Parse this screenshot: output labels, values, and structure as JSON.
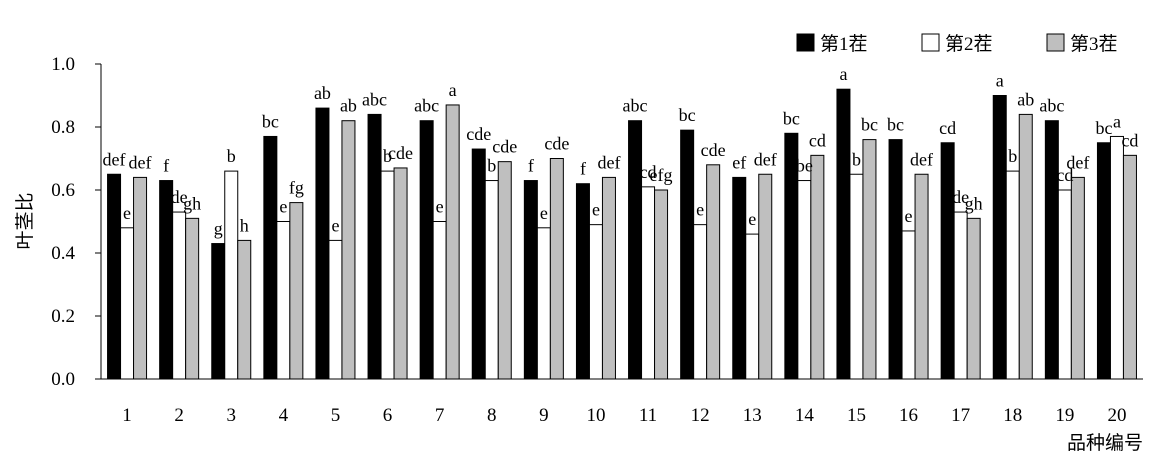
{
  "chart_data": {
    "type": "bar",
    "title": "",
    "xlabel": "品种编号",
    "ylabel": "叶茎比",
    "ylim": [
      0,
      1.0
    ],
    "yticks": [
      "0.0",
      "0.2",
      "0.4",
      "0.6",
      "0.8",
      "1.0"
    ],
    "categories": [
      "1",
      "2",
      "3",
      "4",
      "5",
      "6",
      "7",
      "8",
      "9",
      "10",
      "11",
      "12",
      "13",
      "14",
      "15",
      "16",
      "17",
      "18",
      "19",
      "20"
    ],
    "legend_position": "top-right",
    "grid": false,
    "series": [
      {
        "name": "第1茬",
        "color": "#000000",
        "values": [
          0.65,
          0.63,
          0.43,
          0.77,
          0.86,
          0.84,
          0.82,
          0.73,
          0.63,
          0.62,
          0.82,
          0.79,
          0.64,
          0.78,
          0.92,
          0.76,
          0.75,
          0.9,
          0.82,
          0.75
        ],
        "letters": [
          "def",
          "f",
          "g",
          "bc",
          "ab",
          "abc",
          "abc",
          "cde",
          "f",
          "f",
          "abc",
          "bc",
          "ef",
          "bc",
          "a",
          "bc",
          "cd",
          "a",
          "abc",
          "bc"
        ]
      },
      {
        "name": "第2茬",
        "color": "#ffffff",
        "values": [
          0.48,
          0.53,
          0.66,
          0.5,
          0.44,
          0.66,
          0.5,
          0.63,
          0.48,
          0.49,
          0.61,
          0.49,
          0.46,
          0.63,
          0.65,
          0.47,
          0.53,
          0.66,
          0.6,
          0.77
        ],
        "letters": [
          "e",
          "de",
          "b",
          "e",
          "e",
          "b",
          "e",
          "b",
          "e",
          "e",
          "cd",
          "e",
          "e",
          "be",
          "b",
          "e",
          "de",
          "b",
          "cd",
          "a"
        ]
      },
      {
        "name": "第3茬",
        "color": "#bfbfbf",
        "values": [
          0.64,
          0.51,
          0.44,
          0.56,
          0.82,
          0.67,
          0.87,
          0.69,
          0.7,
          0.64,
          0.6,
          0.68,
          0.65,
          0.71,
          0.76,
          0.65,
          0.51,
          0.84,
          0.64,
          0.71
        ],
        "letters": [
          "def",
          "gh",
          "h",
          "fg",
          "ab",
          "cde",
          "a",
          "cde",
          "cde",
          "def",
          "efg",
          "cde",
          "def",
          "cd",
          "bc",
          "def",
          "gh",
          "ab",
          "def",
          "cd"
        ]
      }
    ]
  }
}
